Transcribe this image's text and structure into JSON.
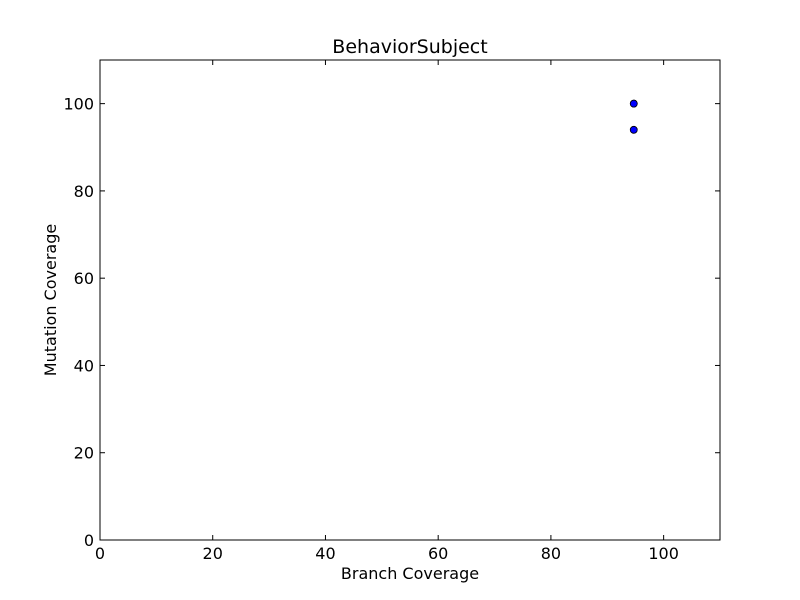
{
  "chart_data": {
    "type": "scatter",
    "title": "BehaviorSubject",
    "xlabel": "Branch Coverage",
    "ylabel": "Mutation Coverage",
    "xlim": [
      0,
      110
    ],
    "ylim": [
      0,
      110
    ],
    "xticks": [
      0,
      20,
      40,
      60,
      80,
      100
    ],
    "yticks": [
      0,
      20,
      40,
      60,
      80,
      100
    ],
    "grid": false,
    "legend": "none",
    "marker_color": "#0000ff",
    "points": [
      {
        "x": 94.7,
        "y": 100
      },
      {
        "x": 94.7,
        "y": 100
      },
      {
        "x": 94.7,
        "y": 94
      }
    ]
  }
}
